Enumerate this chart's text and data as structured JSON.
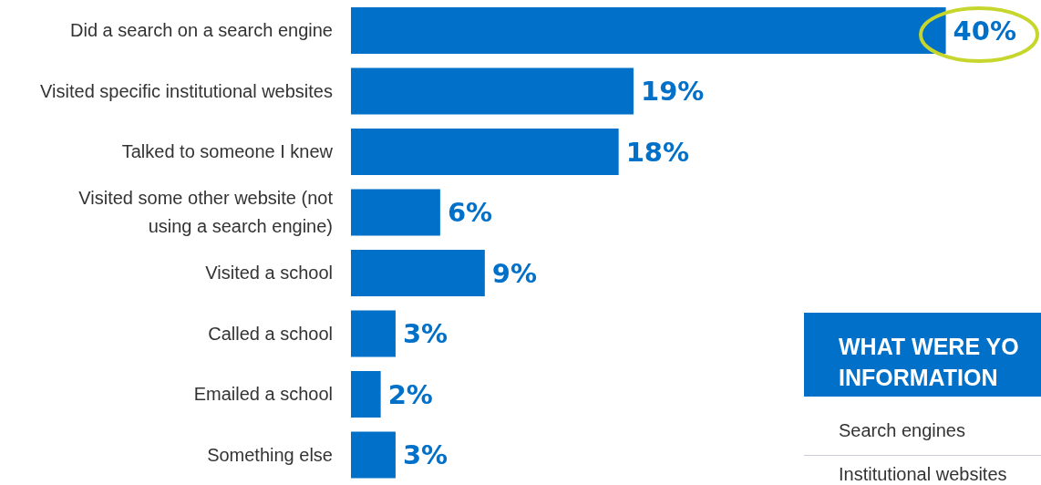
{
  "chart_data": {
    "type": "bar",
    "orientation": "horizontal",
    "categories": [
      "Did a search on a search engine",
      "Visited specific institutional websites",
      "Talked to someone I knew",
      "Visited some other website (not using a search engine)",
      "Visited a school",
      "Called a school",
      "Emailed a school",
      "Something else"
    ],
    "values": [
      40,
      19,
      18,
      6,
      9,
      3,
      2,
      3
    ],
    "value_labels": [
      "40%",
      "19%",
      "18%",
      "6%",
      "9%",
      "3%",
      "2%",
      "3%"
    ],
    "color": "#0070c8",
    "annotations": [
      "WHAT WERE YO",
      "INFORMATION",
      "Search engines",
      "Institutional websites"
    ]
  }
}
